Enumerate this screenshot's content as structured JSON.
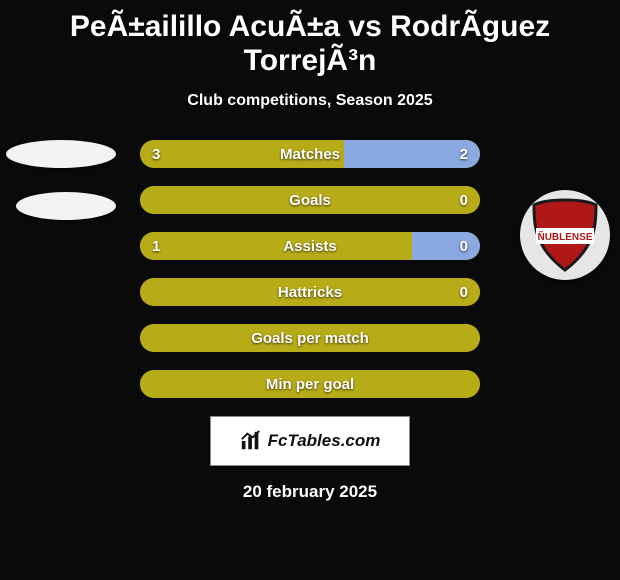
{
  "title": "PeÃ±ailillo AcuÃ±a vs RodrÃ­guez TorrejÃ³n",
  "subtitle": "Club competitions, Season 2025",
  "date": "20 february 2025",
  "brand": "FcTables.com",
  "crest_label": "ÑUBLENSE",
  "colors": {
    "base": "#a9a12f",
    "left": "#b7ab17",
    "right": "#8aa9e0",
    "right_blue": "#8aa9e0",
    "background": "#0a0a0a",
    "text": "#ffffff"
  },
  "font": {
    "label_size": 15,
    "label_weight": 800,
    "title_size": 30
  },
  "rows": [
    {
      "label": "Matches",
      "left_val": "3",
      "right_val": "2",
      "left_pct": 60,
      "right_pct": 40,
      "right_is_blue": true,
      "show_vals": true
    },
    {
      "label": "Goals",
      "left_val": "",
      "right_val": "0",
      "left_pct": 100,
      "right_pct": 0,
      "right_is_blue": false,
      "show_vals": true
    },
    {
      "label": "Assists",
      "left_val": "1",
      "right_val": "0",
      "left_pct": 80,
      "right_pct": 20,
      "right_is_blue": true,
      "show_vals": true
    },
    {
      "label": "Hattricks",
      "left_val": "",
      "right_val": "0",
      "left_pct": 100,
      "right_pct": 0,
      "right_is_blue": false,
      "show_vals": true
    },
    {
      "label": "Goals per match",
      "left_val": "",
      "right_val": "",
      "left_pct": 100,
      "right_pct": 0,
      "right_is_blue": false,
      "show_vals": false
    },
    {
      "label": "Min per goal",
      "left_val": "",
      "right_val": "",
      "left_pct": 100,
      "right_pct": 0,
      "right_is_blue": false,
      "show_vals": false
    }
  ]
}
